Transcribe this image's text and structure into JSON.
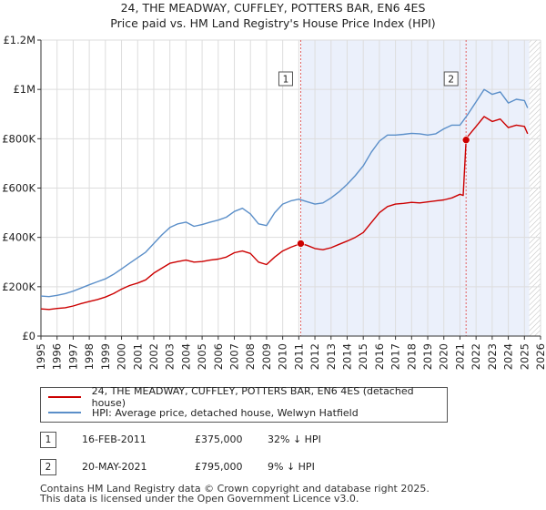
{
  "chart_data": {
    "type": "line",
    "title": "24, THE MEADWAY, CUFFLEY, POTTERS BAR, EN6 4ES",
    "subtitle": "Price paid vs. HM Land Registry's House Price Index (HPI)",
    "xlabel": "",
    "ylabel": "",
    "xlim": [
      1995,
      2026
    ],
    "ylim": [
      0,
      1200000
    ],
    "x_ticks": [
      "1995",
      "1996",
      "1997",
      "1998",
      "1999",
      "2000",
      "2001",
      "2002",
      "2003",
      "2004",
      "2005",
      "2006",
      "2007",
      "2008",
      "2009",
      "2010",
      "2011",
      "2012",
      "2013",
      "2014",
      "2015",
      "2016",
      "2017",
      "2018",
      "2019",
      "2020",
      "2021",
      "2022",
      "2023",
      "2024",
      "2025",
      "2026"
    ],
    "y_ticks": [
      {
        "value": 0,
        "label": "£0"
      },
      {
        "value": 200000,
        "label": "£200K"
      },
      {
        "value": 400000,
        "label": "£400K"
      },
      {
        "value": 600000,
        "label": "£600K"
      },
      {
        "value": 800000,
        "label": "£800K"
      },
      {
        "value": 1000000,
        "label": "£1M"
      },
      {
        "value": 1200000,
        "label": "£1.2M"
      }
    ],
    "grid": true,
    "series": [
      {
        "name": "24, THE MEADWAY, CUFFLEY, POTTERS BAR, EN6 4ES (detached house)",
        "color": "#cc0000",
        "x": [
          1995.0,
          1995.5,
          1996.0,
          1996.5,
          1997.0,
          1997.5,
          1998.0,
          1998.5,
          1999.0,
          1999.5,
          2000.0,
          2000.5,
          2001.0,
          2001.5,
          2002.0,
          2002.5,
          2003.0,
          2003.5,
          2004.0,
          2004.5,
          2005.0,
          2005.5,
          2006.0,
          2006.5,
          2007.0,
          2007.5,
          2008.0,
          2008.5,
          2009.0,
          2009.5,
          2010.0,
          2010.5,
          2011.12,
          2011.5,
          2012.0,
          2012.5,
          2013.0,
          2013.5,
          2014.0,
          2014.5,
          2015.0,
          2015.5,
          2016.0,
          2016.5,
          2017.0,
          2017.5,
          2018.0,
          2018.5,
          2019.0,
          2019.5,
          2020.0,
          2020.5,
          2021.0,
          2021.2,
          2021.38,
          2021.5,
          2022.0,
          2022.5,
          2023.0,
          2023.5,
          2024.0,
          2024.5,
          2025.0,
          2025.2
        ],
        "values": [
          110000,
          108000,
          112000,
          115000,
          122000,
          132000,
          140000,
          148000,
          158000,
          172000,
          190000,
          205000,
          215000,
          228000,
          255000,
          275000,
          295000,
          302000,
          308000,
          300000,
          302000,
          308000,
          312000,
          320000,
          338000,
          345000,
          335000,
          300000,
          290000,
          320000,
          345000,
          360000,
          375000,
          368000,
          355000,
          350000,
          358000,
          372000,
          385000,
          400000,
          420000,
          460000,
          500000,
          525000,
          535000,
          538000,
          542000,
          540000,
          544000,
          548000,
          552000,
          560000,
          575000,
          570000,
          795000,
          810000,
          850000,
          890000,
          870000,
          880000,
          845000,
          855000,
          850000,
          820000
        ]
      },
      {
        "name": "HPI: Average price, detached house, Welwyn Hatfield",
        "color": "#5b8fc9",
        "x": [
          1995.0,
          1995.5,
          1996.0,
          1996.5,
          1997.0,
          1997.5,
          1998.0,
          1998.5,
          1999.0,
          1999.5,
          2000.0,
          2000.5,
          2001.0,
          2001.5,
          2002.0,
          2002.5,
          2003.0,
          2003.5,
          2004.0,
          2004.5,
          2005.0,
          2005.5,
          2006.0,
          2006.5,
          2007.0,
          2007.5,
          2008.0,
          2008.5,
          2009.0,
          2009.5,
          2010.0,
          2010.5,
          2011.0,
          2011.5,
          2012.0,
          2012.5,
          2013.0,
          2013.5,
          2014.0,
          2014.5,
          2015.0,
          2015.5,
          2016.0,
          2016.5,
          2017.0,
          2017.5,
          2018.0,
          2018.5,
          2019.0,
          2019.5,
          2020.0,
          2020.5,
          2021.0,
          2021.5,
          2022.0,
          2022.5,
          2023.0,
          2023.5,
          2024.0,
          2024.5,
          2025.0,
          2025.2
        ],
        "values": [
          162000,
          160000,
          165000,
          172000,
          182000,
          195000,
          208000,
          220000,
          232000,
          250000,
          272000,
          295000,
          318000,
          340000,
          375000,
          410000,
          440000,
          455000,
          462000,
          445000,
          452000,
          462000,
          470000,
          482000,
          505000,
          518000,
          495000,
          455000,
          448000,
          500000,
          535000,
          548000,
          555000,
          545000,
          535000,
          540000,
          560000,
          585000,
          615000,
          650000,
          690000,
          745000,
          790000,
          815000,
          815000,
          818000,
          822000,
          820000,
          815000,
          820000,
          840000,
          855000,
          855000,
          900000,
          950000,
          1000000,
          980000,
          990000,
          945000,
          960000,
          955000,
          925000
        ]
      }
    ],
    "transactions": [
      {
        "num": "1",
        "date": "16-FEB-2011",
        "price": "£375,000",
        "hpi": "32% ↓ HPI",
        "x": 2011.12,
        "value": 375000
      },
      {
        "num": "2",
        "date": "20-MAY-2021",
        "price": "£795,000",
        "hpi": "9% ↓ HPI",
        "x": 2021.38,
        "value": 795000
      }
    ],
    "legend": [
      {
        "label": "24, THE MEADWAY, CUFFLEY, POTTERS BAR, EN6 4ES (detached house)",
        "color": "#cc0000"
      },
      {
        "label": "HPI: Average price, detached house, Welwyn Hatfield",
        "color": "#5b8fc9"
      }
    ],
    "footer": [
      "Contains HM Land Registry data © Crown copyright and database right 2025.",
      "This data is licensed under the Open Government Licence v3.0."
    ]
  }
}
